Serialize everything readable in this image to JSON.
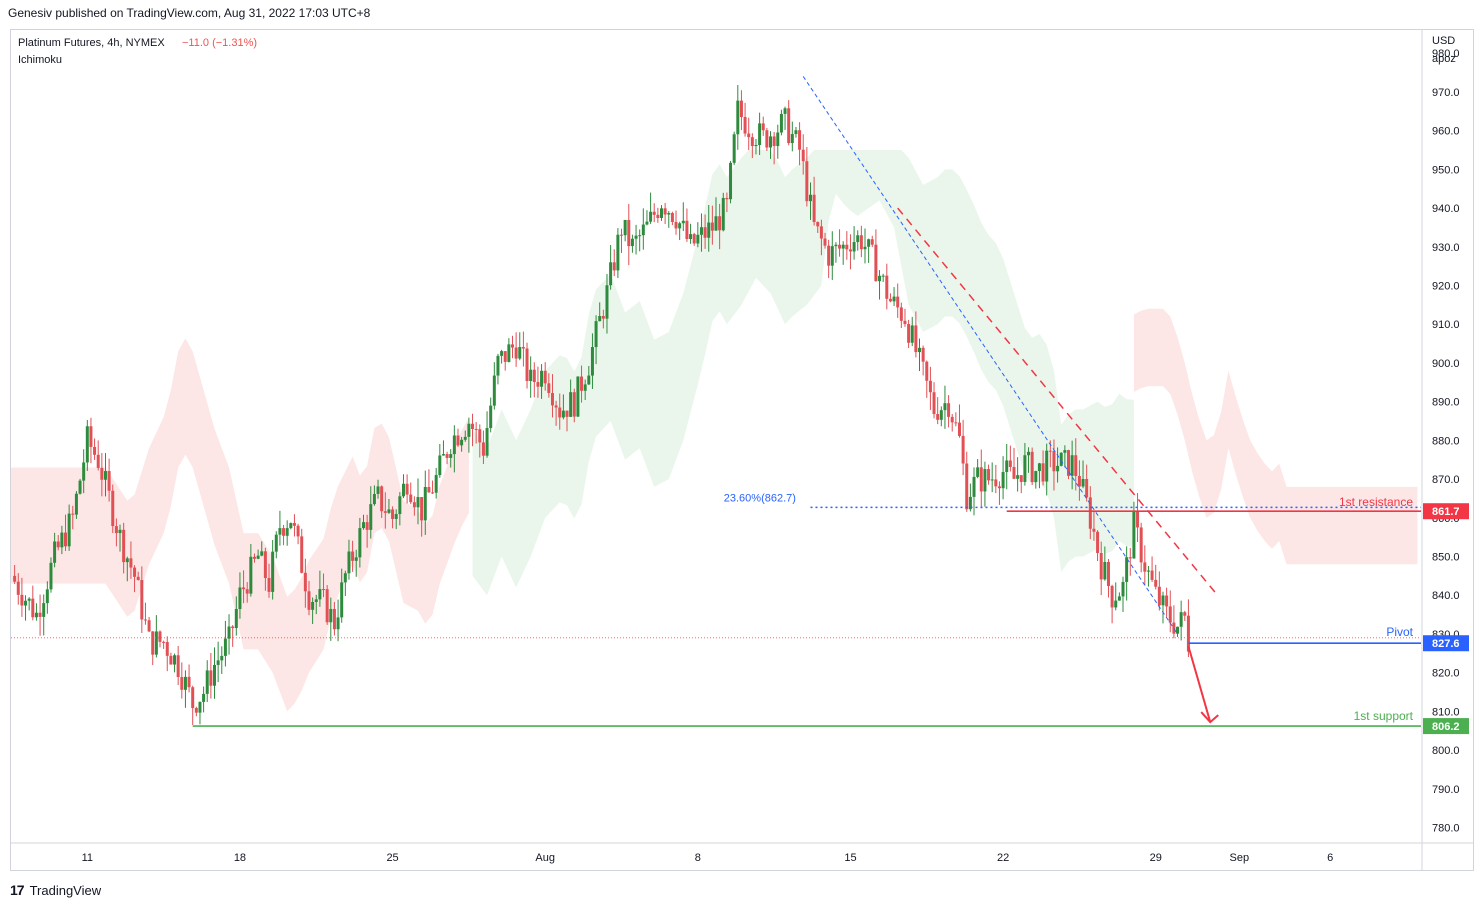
{
  "header": {
    "published": "Genesiv published on TradingView.com, Aug 31, 2022 17:03 UTC+8"
  },
  "footer": {
    "brand": "TradingView",
    "logo": "tv-logo-icon"
  },
  "legend": {
    "symbol": "Platinum Futures, 4h, NYMEX",
    "change": "−11.0 (−1.31%)",
    "indicator": "Ichimoku"
  },
  "axis": {
    "currency": "USD",
    "mode": "apoz"
  },
  "colors": {
    "up": "#26a69a",
    "down": "#ef5350",
    "bull_candle": "#2e8b3e",
    "bear_candle": "#e05055",
    "resistance": "#f23645",
    "pivot": "#2962ff",
    "support": "#4caf50",
    "cloud_green": "#e8f5e9",
    "cloud_red": "#fde0e0",
    "fib": "#2962ff"
  },
  "chart_data": {
    "type": "candlestick",
    "title": "Platinum Futures, 4h, NYMEX",
    "ylim": [
      776,
      986
    ],
    "y_ticks": [
      980,
      970,
      960,
      950,
      940,
      930,
      920,
      910,
      900,
      890,
      880,
      870,
      860,
      850,
      840,
      830,
      820,
      810,
      800,
      790,
      780
    ],
    "x_ticks": [
      {
        "label": "11",
        "x": 9
      },
      {
        "label": "18",
        "x": 51
      },
      {
        "label": "25",
        "x": 93
      },
      {
        "label": "Aug",
        "x": 135
      },
      {
        "label": "8",
        "x": 177
      },
      {
        "label": "15",
        "x": 219
      },
      {
        "label": "22",
        "x": 261
      },
      {
        "label": "29",
        "x": 303
      },
      {
        "label": "Sep",
        "x": 326
      },
      {
        "label": "6",
        "x": 351
      }
    ],
    "x_range": [
      -12,
      376
    ],
    "close_series_anchors": [
      [
        -12,
        845
      ],
      [
        -5,
        835
      ],
      [
        0,
        850
      ],
      [
        5,
        860
      ],
      [
        9,
        880
      ],
      [
        12,
        875
      ],
      [
        18,
        855
      ],
      [
        22,
        845
      ],
      [
        26,
        828
      ],
      [
        30,
        828
      ],
      [
        34,
        822
      ],
      [
        38,
        812
      ],
      [
        41,
        815
      ],
      [
        44,
        822
      ],
      [
        48,
        828
      ],
      [
        51,
        840
      ],
      [
        56,
        850
      ],
      [
        59,
        843
      ],
      [
        62,
        858
      ],
      [
        65,
        860
      ],
      [
        70,
        840
      ],
      [
        74,
        838
      ],
      [
        77,
        833
      ],
      [
        80,
        845
      ],
      [
        85,
        858
      ],
      [
        89,
        865
      ],
      [
        93,
        860
      ],
      [
        97,
        870
      ],
      [
        101,
        862
      ],
      [
        105,
        870
      ],
      [
        109,
        880
      ],
      [
        114,
        885
      ],
      [
        118,
        878
      ],
      [
        122,
        900
      ],
      [
        127,
        905
      ],
      [
        131,
        895
      ],
      [
        135,
        898
      ],
      [
        139,
        888
      ],
      [
        143,
        890
      ],
      [
        147,
        900
      ],
      [
        152,
        918
      ],
      [
        156,
        935
      ],
      [
        159,
        930
      ],
      [
        163,
        935
      ],
      [
        167,
        942
      ],
      [
        171,
        938
      ],
      [
        175,
        930
      ],
      [
        177,
        932
      ],
      [
        181,
        935
      ],
      [
        185,
        940
      ],
      [
        188,
        965
      ],
      [
        192,
        960
      ],
      [
        195,
        958
      ],
      [
        198,
        960
      ],
      [
        201,
        962
      ],
      [
        205,
        955
      ],
      [
        209,
        935
      ],
      [
        213,
        928
      ],
      [
        217,
        930
      ],
      [
        219,
        932
      ],
      [
        222,
        932
      ],
      [
        226,
        925
      ],
      [
        230,
        916
      ],
      [
        234,
        912
      ],
      [
        238,
        900
      ],
      [
        242,
        888
      ],
      [
        246,
        890
      ],
      [
        249,
        880
      ],
      [
        251,
        866
      ],
      [
        254,
        870
      ],
      [
        257,
        870
      ],
      [
        261,
        872
      ],
      [
        264,
        870
      ],
      [
        267,
        874
      ],
      [
        270,
        872
      ],
      [
        274,
        874
      ],
      [
        277,
        874
      ],
      [
        280,
        874
      ],
      [
        282,
        870
      ],
      [
        285,
        860
      ],
      [
        288,
        848
      ],
      [
        291,
        840
      ],
      [
        294,
        842
      ],
      [
        297,
        858
      ],
      [
        300,
        848
      ],
      [
        303,
        840
      ],
      [
        306,
        835
      ],
      [
        309,
        832
      ],
      [
        311,
        834
      ],
      [
        312,
        828
      ]
    ],
    "ichimoku_cloud": {
      "green_span": {
        "x_start": 115,
        "x_end": 297,
        "peak_value": 955
      },
      "red_spans": [
        {
          "x_start": -12,
          "x_end": 115
        },
        {
          "x_start": 297,
          "x_end": 376
        }
      ]
    },
    "levels": [
      {
        "name": "1st resistance",
        "value": 861.7,
        "label": "861.7"
      },
      {
        "name": "Pivot",
        "value": 827.6,
        "label": "827.6"
      },
      {
        "name": "1st support",
        "value": 806.2,
        "label": "806.2"
      }
    ],
    "fib_label": "23.60%(862.7)",
    "last_price_value": 829
  },
  "annotations": {
    "resistance_text": "1st resistance",
    "pivot_text": "Pivot",
    "support_text": "1st support"
  }
}
